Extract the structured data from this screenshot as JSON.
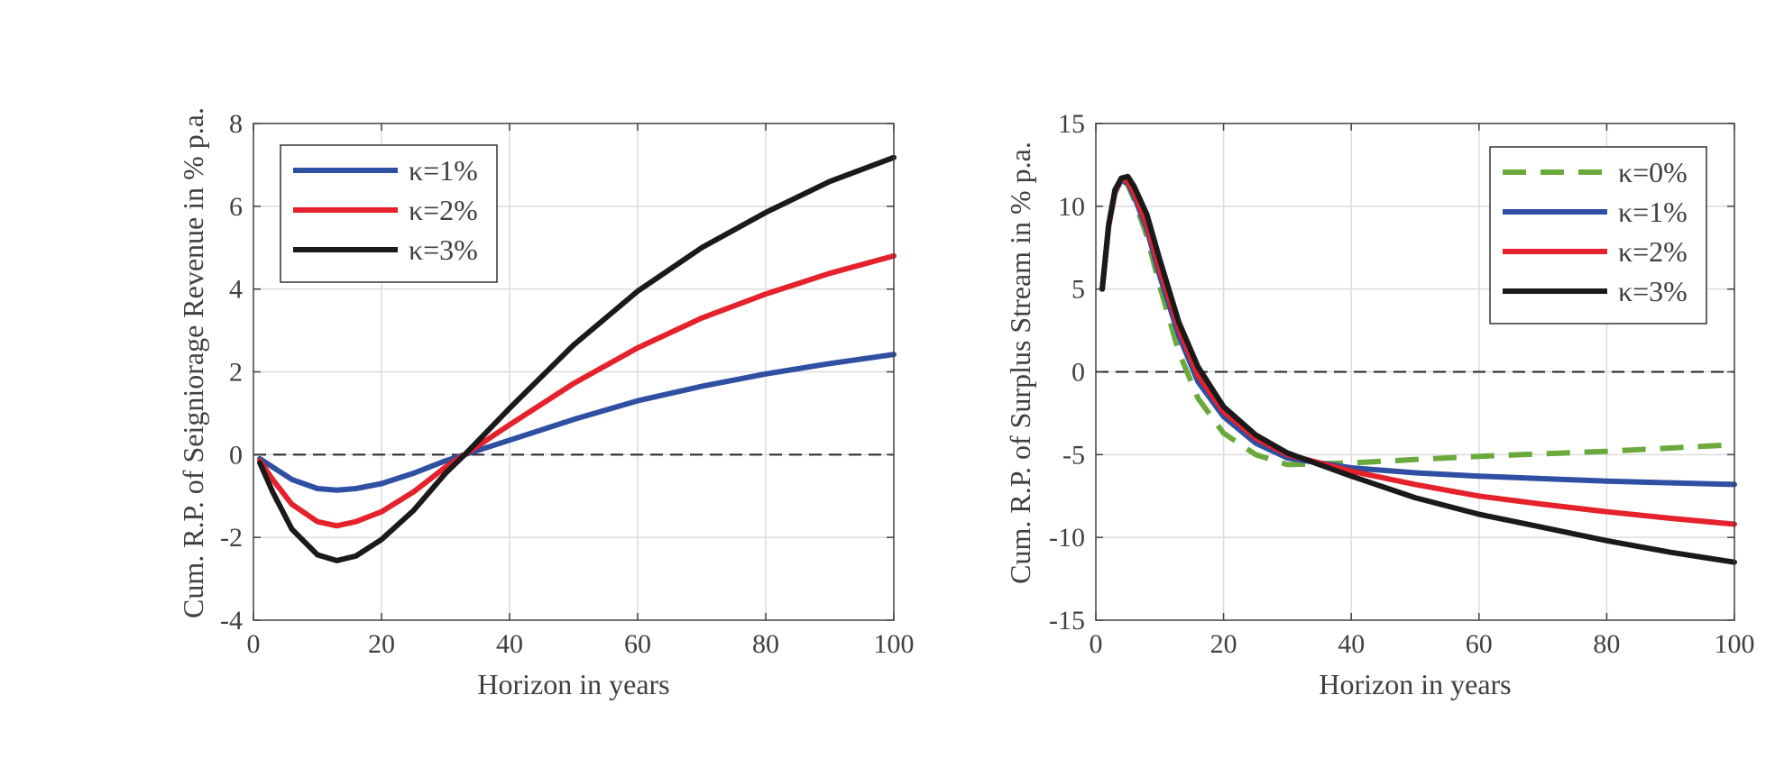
{
  "chart_data": [
    {
      "type": "line",
      "xlabel": "Horizon in years",
      "ylabel": "Cum. R.P. of Seigniorage Revenue in % p.a.",
      "xlim": [
        0,
        100
      ],
      "ylim": [
        -4,
        8
      ],
      "xticks": [
        0,
        20,
        40,
        60,
        80,
        100
      ],
      "yticks": [
        -4,
        -2,
        0,
        2,
        4,
        6,
        8
      ],
      "xtick_labels": [
        "0",
        "20",
        "40",
        "60",
        "80",
        "100"
      ],
      "ytick_labels": [
        "-4",
        "-2",
        "0",
        "2",
        "4",
        "6",
        "8"
      ],
      "grid": true,
      "legend_position": "top-left",
      "zero_line": true,
      "series": [
        {
          "name": "κ=1%",
          "color": "#2f4fa3",
          "dash": "solid",
          "x": [
            1,
            3,
            6,
            10,
            13,
            16,
            20,
            25,
            30,
            33,
            40,
            50,
            60,
            70,
            80,
            90,
            100
          ],
          "y": [
            -0.1,
            -0.3,
            -0.6,
            -0.82,
            -0.86,
            -0.82,
            -0.7,
            -0.45,
            -0.15,
            0,
            0.35,
            0.85,
            1.3,
            1.65,
            1.95,
            2.2,
            2.42
          ]
        },
        {
          "name": "κ=2%",
          "color": "#e5212b",
          "dash": "solid",
          "x": [
            1,
            3,
            6,
            10,
            13,
            16,
            20,
            25,
            30,
            33,
            40,
            50,
            60,
            70,
            80,
            90,
            100
          ],
          "y": [
            -0.15,
            -0.6,
            -1.2,
            -1.62,
            -1.72,
            -1.62,
            -1.38,
            -0.9,
            -0.3,
            0,
            0.72,
            1.72,
            2.58,
            3.3,
            3.88,
            4.38,
            4.8
          ]
        },
        {
          "name": "κ=3%",
          "color": "#1a1a1a",
          "dash": "solid",
          "x": [
            1,
            3,
            6,
            10,
            13,
            16,
            20,
            25,
            30,
            33,
            40,
            50,
            60,
            70,
            80,
            90,
            100
          ],
          "y": [
            -0.2,
            -0.9,
            -1.8,
            -2.42,
            -2.56,
            -2.45,
            -2.05,
            -1.35,
            -0.45,
            0,
            1.12,
            2.65,
            3.95,
            5.0,
            5.85,
            6.6,
            7.18
          ]
        }
      ]
    },
    {
      "type": "line",
      "xlabel": "Horizon in years",
      "ylabel": "Cum. R.P. of Surplus Stream in % p.a.",
      "xlim": [
        0,
        100
      ],
      "ylim": [
        -15,
        15
      ],
      "xticks": [
        0,
        20,
        40,
        60,
        80,
        100
      ],
      "yticks": [
        -15,
        -10,
        -5,
        0,
        5,
        10,
        15
      ],
      "xtick_labels": [
        "0",
        "20",
        "40",
        "60",
        "80",
        "100"
      ],
      "ytick_labels": [
        "-15",
        "-10",
        "-5",
        "0",
        "5",
        "10",
        "15"
      ],
      "grid": true,
      "legend_position": "top-right",
      "zero_line": true,
      "series": [
        {
          "name": "κ=0%",
          "color": "#6aaa3c",
          "dash": "dashed",
          "x": [
            1,
            2,
            3,
            4,
            5,
            6,
            8,
            10,
            13,
            16,
            20,
            25,
            30,
            40,
            50,
            60,
            70,
            80,
            90,
            100
          ],
          "y": [
            5,
            8.8,
            10.8,
            11.6,
            11.3,
            10.4,
            8.2,
            5.2,
            1.2,
            -1.6,
            -3.7,
            -5.0,
            -5.6,
            -5.5,
            -5.3,
            -5.1,
            -4.95,
            -4.8,
            -4.6,
            -4.4
          ]
        },
        {
          "name": "κ=1%",
          "color": "#2f4fa3",
          "dash": "solid",
          "x": [
            1,
            2,
            3,
            4,
            5,
            6,
            8,
            10,
            13,
            16,
            20,
            25,
            30,
            40,
            50,
            60,
            70,
            80,
            90,
            100
          ],
          "y": [
            5,
            8.8,
            10.8,
            11.6,
            11.4,
            10.6,
            8.6,
            5.8,
            2.2,
            -0.6,
            -2.7,
            -4.3,
            -5.2,
            -5.8,
            -6.1,
            -6.3,
            -6.45,
            -6.6,
            -6.7,
            -6.8
          ]
        },
        {
          "name": "κ=2%",
          "color": "#e5212b",
          "dash": "solid",
          "x": [
            1,
            2,
            3,
            4,
            5,
            6,
            8,
            10,
            13,
            16,
            20,
            25,
            30,
            40,
            50,
            60,
            70,
            80,
            90,
            100
          ],
          "y": [
            5,
            8.8,
            10.9,
            11.7,
            11.5,
            10.8,
            8.9,
            6.2,
            2.6,
            -0.2,
            -2.4,
            -4.0,
            -5.0,
            -6.0,
            -6.8,
            -7.5,
            -8.0,
            -8.45,
            -8.85,
            -9.2
          ]
        },
        {
          "name": "κ=3%",
          "color": "#1a1a1a",
          "dash": "solid",
          "x": [
            1,
            2,
            3,
            4,
            5,
            6,
            8,
            10,
            13,
            16,
            20,
            25,
            30,
            40,
            50,
            60,
            70,
            80,
            90,
            100
          ],
          "y": [
            5,
            8.9,
            11.0,
            11.7,
            11.8,
            11.2,
            9.5,
            6.8,
            3.0,
            0.3,
            -2.1,
            -3.8,
            -4.9,
            -6.3,
            -7.6,
            -8.6,
            -9.4,
            -10.2,
            -10.9,
            -11.5
          ]
        }
      ]
    }
  ]
}
